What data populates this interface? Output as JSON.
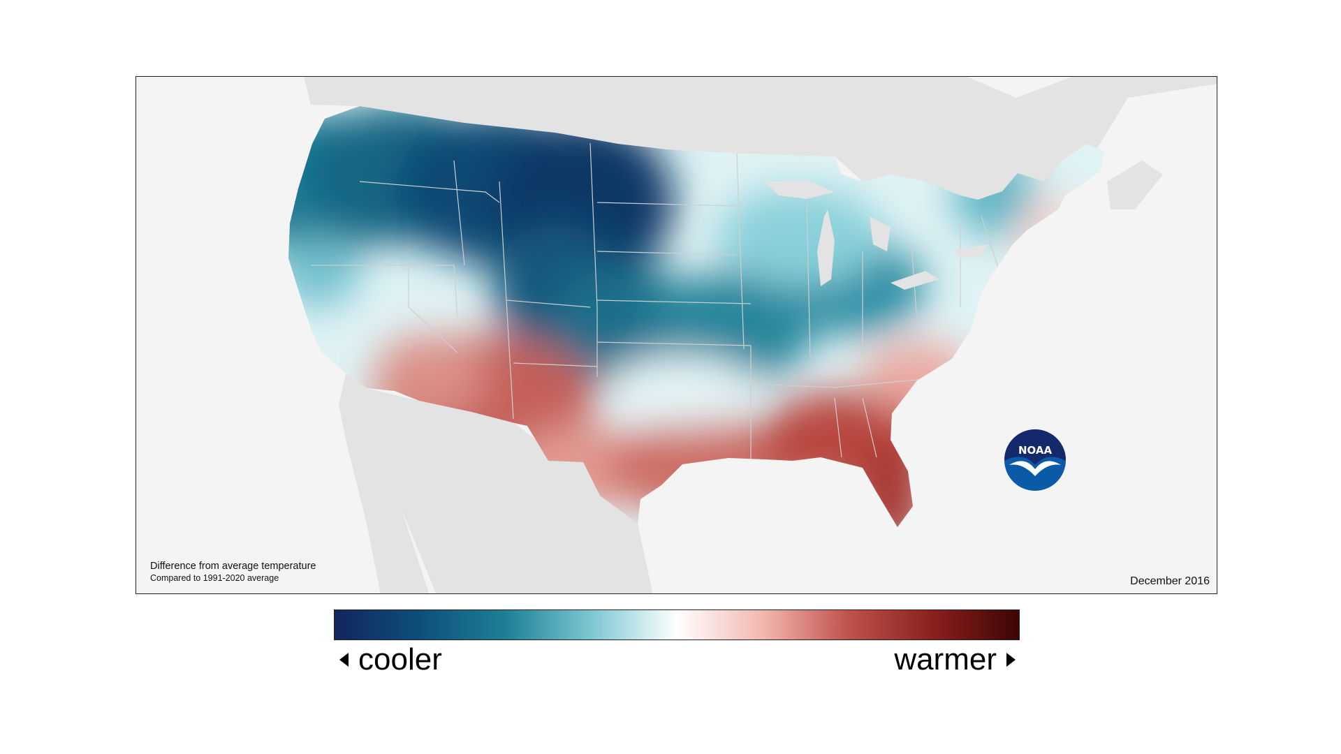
{
  "map": {
    "caption_title": "Difference from average temperature",
    "caption_subtitle": "Compared to 1991-2020 average",
    "date": "December 2016",
    "logo_text": "NOAA",
    "background_color": "#f4f4f4",
    "neighbor_land_color": "#e3e3e3",
    "state_border_color": "#cfcfcf"
  },
  "legend": {
    "left_label": "cooler",
    "right_label": "warmer",
    "colors": [
      "#12265e",
      "#0d4f7a",
      "#1f7f96",
      "#7cc7d2",
      "#ffffff",
      "#f2b8b0",
      "#c0524c",
      "#8a1f1d",
      "#3d0506"
    ]
  },
  "icons": {
    "left_arrow": "triangle-left-icon",
    "right_arrow": "triangle-right-icon"
  }
}
